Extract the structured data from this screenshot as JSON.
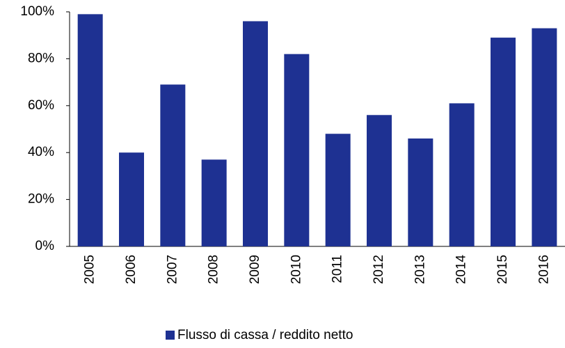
{
  "chart_data": {
    "type": "bar",
    "categories": [
      "2005",
      "2006",
      "2007",
      "2008",
      "2009",
      "2010",
      "2011",
      "2012",
      "2013",
      "2014",
      "2015",
      "2016"
    ],
    "series": [
      {
        "name": "Flusso di cassa / reddito netto",
        "color": "#1e3192",
        "values": [
          99,
          40,
          69,
          37,
          96,
          82,
          48,
          56,
          46,
          61,
          89,
          93
        ]
      }
    ],
    "ylim": [
      0,
      100
    ],
    "yticks": [
      {
        "value": 0,
        "label": "0%"
      },
      {
        "value": 20,
        "label": "20%"
      },
      {
        "value": 40,
        "label": "40%"
      },
      {
        "value": 60,
        "label": "60%"
      },
      {
        "value": 80,
        "label": "80%"
      },
      {
        "value": 100,
        "label": "100%"
      }
    ],
    "grid": false,
    "legend": "bottom"
  }
}
